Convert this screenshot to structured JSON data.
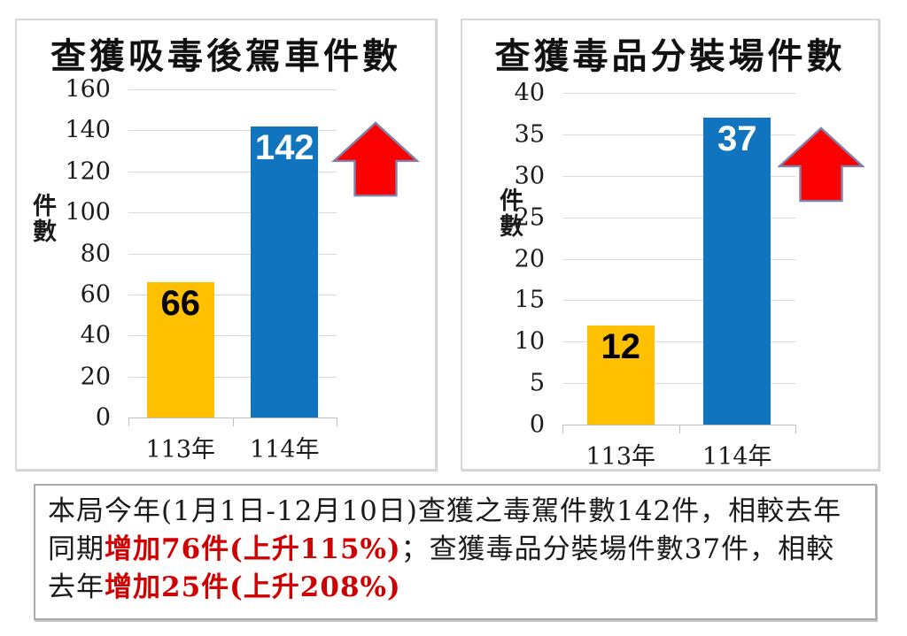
{
  "colors": {
    "bar_orange": "#FFC000",
    "bar_blue": "#1075BE",
    "arrow_fill": "#FA0000",
    "arrow_stroke": "#8080A8",
    "grid": "#D9D9D9",
    "axis": "#BFBFBF",
    "text": "#1A1A1A",
    "red_text": "#D00000",
    "value_on_orange": "#000000",
    "value_on_blue": "#FFFFFF"
  },
  "chart_data": [
    {
      "type": "bar",
      "title": "查獲吸毒後駕車件數",
      "ylabel": "件數",
      "xlabel": "",
      "categories": [
        "113年",
        "114年"
      ],
      "values": [
        66,
        142
      ],
      "ylim": [
        0,
        160
      ],
      "ytick_step": 20,
      "grid": true,
      "legend": false,
      "bar_colors": [
        "#FFC000",
        "#1075BE"
      ],
      "value_label_colors": [
        "#000000",
        "#FFFFFF"
      ],
      "annotation": "red-up-arrow"
    },
    {
      "type": "bar",
      "title": "查獲毒品分裝場件數",
      "ylabel": "件數",
      "xlabel": "",
      "categories": [
        "113年",
        "114年"
      ],
      "values": [
        12,
        37
      ],
      "ylim": [
        0,
        40
      ],
      "ytick_step": 5,
      "grid": true,
      "legend": false,
      "bar_colors": [
        "#FFC000",
        "#1075BE"
      ],
      "value_label_colors": [
        "#000000",
        "#FFFFFF"
      ],
      "annotation": "red-up-arrow"
    }
  ],
  "summary": {
    "segments": [
      {
        "text": "本局今年(1月1日-12月10日)查獲之毒駕件數142件，相較去年同期",
        "color": "default"
      },
      {
        "text": "增加76件(上升115%)",
        "color": "red"
      },
      {
        "text": "；查獲毒品分裝場件數37件，相較去年",
        "color": "default"
      },
      {
        "text": "增加25件(上升208%)",
        "color": "red"
      }
    ]
  }
}
